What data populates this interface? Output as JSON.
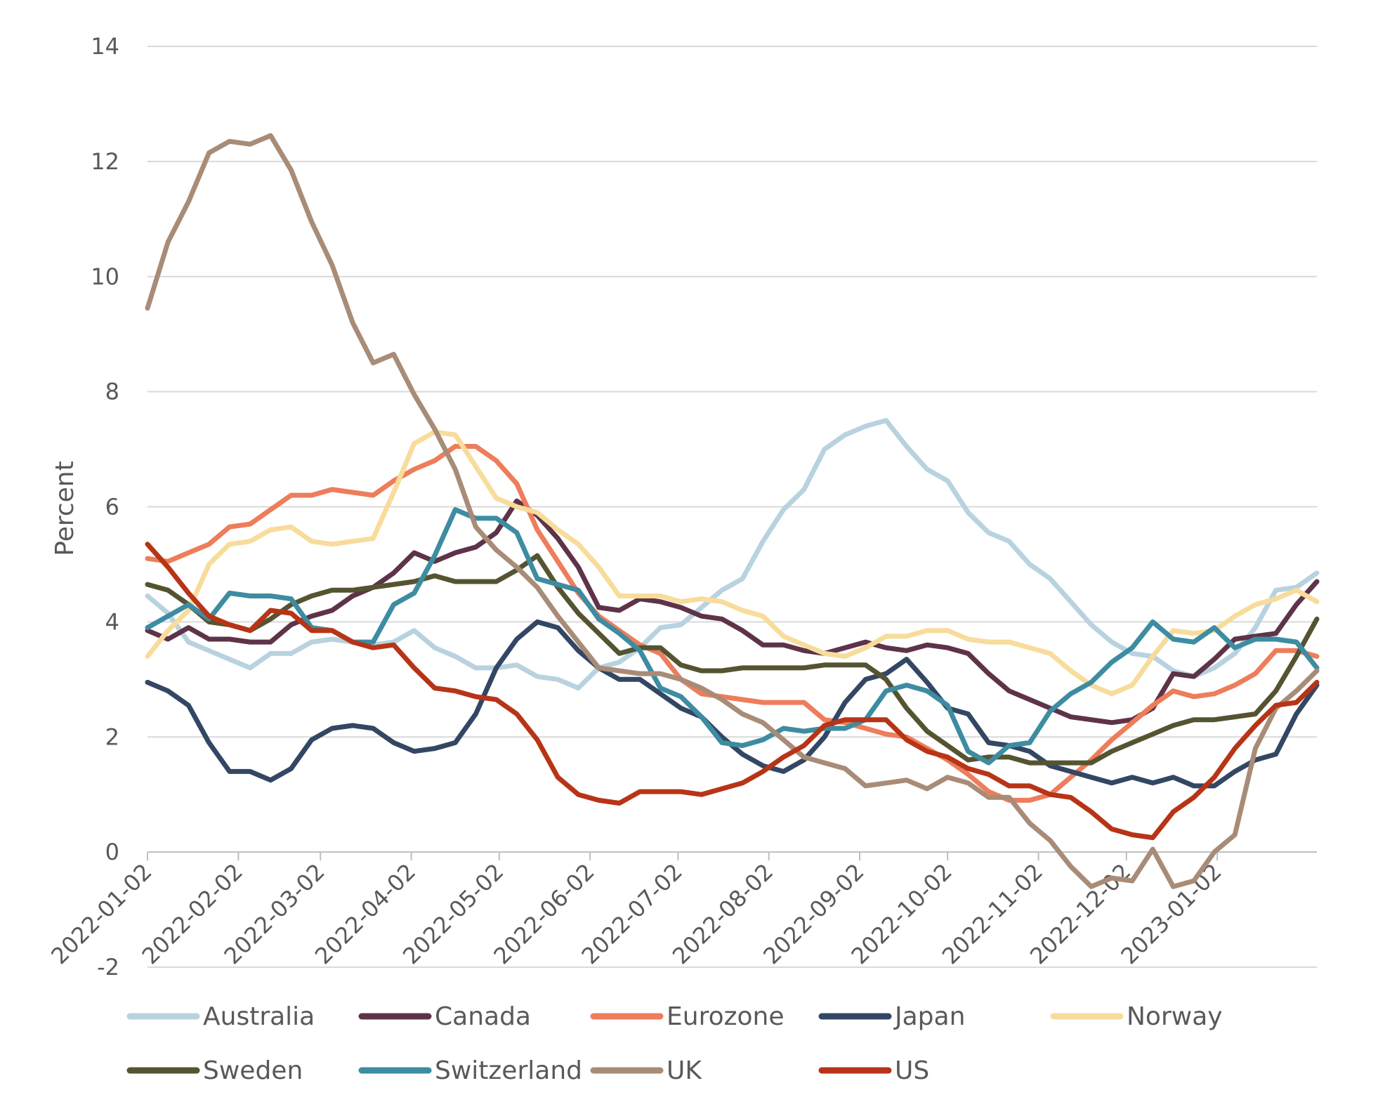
{
  "chart_data": {
    "type": "line",
    "title": "",
    "xlabel": "",
    "ylabel": "Percent",
    "ylim": [
      -2,
      14
    ],
    "yticks": [
      "-2",
      "0",
      "2",
      "4",
      "6",
      "8",
      "10",
      "12",
      "14"
    ],
    "xticks": [
      "2022-01-02",
      "2022-02-02",
      "2022-03-02",
      "2022-04-02",
      "2022-05-02",
      "2022-06-02",
      "2022-07-02",
      "2022-08-02",
      "2022-09-02",
      "2022-10-02",
      "2022-11-02",
      "2022-12-02",
      "2023-01-02"
    ],
    "grid": "horizontal",
    "legend_position": "bottom",
    "x_start": "2022-01-02",
    "x_end": "2023-02-05",
    "series": [
      {
        "name": "Australia",
        "color": "#b8d3df",
        "values": [
          4.45,
          4.15,
          3.65,
          3.5,
          3.35,
          3.2,
          3.45,
          3.45,
          3.65,
          3.7,
          3.65,
          3.6,
          3.65,
          3.85,
          3.55,
          3.4,
          3.2,
          3.2,
          3.25,
          3.05,
          3.0,
          2.85,
          3.2,
          3.3,
          3.55,
          3.9,
          3.95,
          4.25,
          4.55,
          4.75,
          5.4,
          5.95,
          6.3,
          7.0,
          7.25,
          7.4,
          7.5,
          7.05,
          6.65,
          6.45,
          5.9,
          5.55,
          5.4,
          5.0,
          4.75,
          4.35,
          3.95,
          3.65,
          3.45,
          3.4,
          3.15,
          3.05,
          3.2,
          3.45,
          3.9,
          4.55,
          4.6,
          4.85
        ]
      },
      {
        "name": "Canada",
        "color": "#5e3349",
        "values": [
          3.85,
          3.7,
          3.9,
          3.7,
          3.7,
          3.65,
          3.65,
          3.95,
          4.1,
          4.2,
          4.45,
          4.6,
          4.85,
          5.2,
          5.05,
          5.2,
          5.3,
          5.55,
          6.1,
          5.85,
          5.45,
          4.95,
          4.25,
          4.2,
          4.4,
          4.35,
          4.25,
          4.1,
          4.05,
          3.85,
          3.6,
          3.6,
          3.5,
          3.45,
          3.55,
          3.65,
          3.55,
          3.5,
          3.6,
          3.55,
          3.45,
          3.1,
          2.8,
          2.65,
          2.5,
          2.35,
          2.3,
          2.25,
          2.3,
          2.5,
          3.1,
          3.05,
          3.35,
          3.7,
          3.75,
          3.8,
          4.3,
          4.7
        ]
      },
      {
        "name": "Eurozone",
        "color": "#ed7d5b",
        "values": [
          5.1,
          5.05,
          5.2,
          5.35,
          5.65,
          5.7,
          5.95,
          6.2,
          6.2,
          6.3,
          6.25,
          6.2,
          6.45,
          6.65,
          6.8,
          7.05,
          7.05,
          6.8,
          6.4,
          5.6,
          5.05,
          4.5,
          4.1,
          3.85,
          3.6,
          3.45,
          3.0,
          2.75,
          2.7,
          2.65,
          2.6,
          2.6,
          2.6,
          2.3,
          2.25,
          2.15,
          2.05,
          2.0,
          1.8,
          1.6,
          1.35,
          1.05,
          0.9,
          0.9,
          1.0,
          1.3,
          1.6,
          1.95,
          2.25,
          2.55,
          2.8,
          2.7,
          2.75,
          2.9,
          3.1,
          3.5,
          3.5,
          3.4
        ]
      },
      {
        "name": "Japan",
        "color": "#334764",
        "values": [
          2.95,
          2.8,
          2.55,
          1.9,
          1.4,
          1.4,
          1.25,
          1.45,
          1.95,
          2.15,
          2.2,
          2.15,
          1.9,
          1.75,
          1.8,
          1.9,
          2.4,
          3.2,
          3.7,
          4.0,
          3.9,
          3.5,
          3.2,
          3.0,
          3.0,
          2.75,
          2.5,
          2.35,
          2.0,
          1.7,
          1.5,
          1.4,
          1.6,
          2.0,
          2.6,
          3.0,
          3.1,
          3.35,
          2.95,
          2.5,
          2.4,
          1.9,
          1.85,
          1.75,
          1.5,
          1.4,
          1.3,
          1.2,
          1.3,
          1.2,
          1.3,
          1.15,
          1.15,
          1.4,
          1.6,
          1.7,
          2.4,
          2.9
        ]
      },
      {
        "name": "Norway",
        "color": "#f8dc9b",
        "values": [
          3.4,
          3.85,
          4.2,
          5.0,
          5.35,
          5.4,
          5.6,
          5.65,
          5.4,
          5.35,
          5.4,
          5.45,
          6.25,
          7.1,
          7.3,
          7.25,
          6.7,
          6.15,
          6.0,
          5.9,
          5.6,
          5.35,
          4.95,
          4.45,
          4.45,
          4.45,
          4.35,
          4.4,
          4.35,
          4.2,
          4.1,
          3.75,
          3.6,
          3.45,
          3.4,
          3.55,
          3.75,
          3.75,
          3.85,
          3.85,
          3.7,
          3.65,
          3.65,
          3.55,
          3.45,
          3.15,
          2.9,
          2.75,
          2.9,
          3.4,
          3.85,
          3.8,
          3.85,
          4.1,
          4.3,
          4.4,
          4.55,
          4.35
        ]
      },
      {
        "name": "Sweden",
        "color": "#555431",
        "values": [
          4.65,
          4.55,
          4.3,
          4.0,
          3.95,
          3.85,
          4.05,
          4.3,
          4.45,
          4.55,
          4.55,
          4.6,
          4.65,
          4.7,
          4.8,
          4.7,
          4.7,
          4.7,
          4.9,
          5.15,
          4.6,
          4.15,
          3.8,
          3.45,
          3.55,
          3.55,
          3.25,
          3.15,
          3.15,
          3.2,
          3.2,
          3.2,
          3.2,
          3.25,
          3.25,
          3.25,
          3.0,
          2.5,
          2.1,
          1.85,
          1.6,
          1.65,
          1.65,
          1.55,
          1.55,
          1.55,
          1.55,
          1.75,
          1.9,
          2.05,
          2.2,
          2.3,
          2.3,
          2.35,
          2.4,
          2.8,
          3.4,
          4.05
        ]
      },
      {
        "name": "Switzerland",
        "color": "#3d8ca1",
        "values": [
          3.9,
          4.1,
          4.3,
          4.05,
          4.5,
          4.45,
          4.45,
          4.4,
          3.9,
          3.85,
          3.65,
          3.65,
          4.3,
          4.5,
          5.15,
          5.95,
          5.8,
          5.8,
          5.55,
          4.75,
          4.65,
          4.55,
          4.05,
          3.8,
          3.5,
          2.85,
          2.7,
          2.35,
          1.9,
          1.85,
          1.95,
          2.15,
          2.1,
          2.15,
          2.15,
          2.3,
          2.8,
          2.9,
          2.8,
          2.55,
          1.75,
          1.55,
          1.85,
          1.9,
          2.45,
          2.75,
          2.95,
          3.3,
          3.55,
          4.0,
          3.7,
          3.65,
          3.9,
          3.55,
          3.7,
          3.7,
          3.65,
          3.2
        ]
      },
      {
        "name": "UK",
        "color": "#a88c77",
        "values": [
          9.45,
          10.6,
          11.3,
          12.15,
          12.35,
          12.3,
          12.45,
          11.85,
          10.95,
          10.2,
          9.2,
          8.5,
          8.65,
          7.95,
          7.35,
          6.65,
          5.65,
          5.25,
          4.95,
          4.6,
          4.1,
          3.65,
          3.2,
          3.15,
          3.1,
          3.1,
          3.0,
          2.85,
          2.65,
          2.4,
          2.25,
          1.95,
          1.65,
          1.55,
          1.45,
          1.15,
          1.2,
          1.25,
          1.1,
          1.3,
          1.2,
          0.95,
          0.95,
          0.5,
          0.2,
          -0.25,
          -0.6,
          -0.45,
          -0.5,
          0.05,
          -0.6,
          -0.5,
          0.0,
          0.3,
          1.8,
          2.5,
          2.8,
          3.15
        ]
      },
      {
        "name": "US",
        "color": "#b83417",
        "values": [
          5.35,
          4.95,
          4.5,
          4.1,
          3.95,
          3.85,
          4.2,
          4.15,
          3.85,
          3.85,
          3.65,
          3.55,
          3.6,
          3.2,
          2.85,
          2.8,
          2.7,
          2.65,
          2.4,
          1.95,
          1.3,
          1.0,
          0.9,
          0.85,
          1.05,
          1.05,
          1.05,
          1.0,
          1.1,
          1.2,
          1.4,
          1.65,
          1.85,
          2.2,
          2.3,
          2.3,
          2.3,
          1.95,
          1.75,
          1.65,
          1.45,
          1.35,
          1.15,
          1.15,
          1.0,
          0.95,
          0.7,
          0.4,
          0.3,
          0.25,
          0.7,
          0.95,
          1.3,
          1.8,
          2.2,
          2.55,
          2.6,
          2.95
        ]
      }
    ]
  }
}
